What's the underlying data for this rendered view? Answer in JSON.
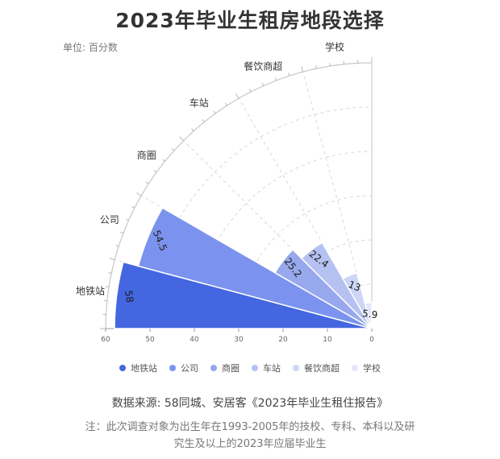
{
  "page": {
    "title": "2023年毕业生租房地段选择",
    "unit": "单位: 百分数",
    "source": "数据来源: 58同城、安居客《2023年毕业生租住报告》",
    "note": "注：此次调查对象为出生年在1993-2005年的技校、专科、本科以及研究生及以上的2023年应届毕业生"
  },
  "chart_data": {
    "type": "polar-bar",
    "title": "2023年毕业生租房地段选择",
    "unit": "单位: 百分数",
    "categories": [
      "地铁站",
      "公司",
      "商圈",
      "车站",
      "餐饮商超",
      "学校"
    ],
    "values": [
      58,
      54.5,
      25.2,
      22.4,
      13,
      5.9
    ],
    "data_labels": [
      "58",
      "54.5",
      "25.2",
      "22.4",
      "13",
      "5.9"
    ],
    "radial_ticks": [
      "60",
      "50",
      "40",
      "30",
      "20",
      "10",
      "0"
    ],
    "radial_max": 60,
    "colors": [
      "#4466e0",
      "#7b93ee",
      "#97a8ec",
      "#b5c2f1",
      "#cdd6f6",
      "#e2e7fa"
    ],
    "legend": [
      "地铁站",
      "公司",
      "商圈",
      "车站",
      "餐饮商超",
      "学校"
    ],
    "legend_position": "bottom",
    "grid": true
  }
}
